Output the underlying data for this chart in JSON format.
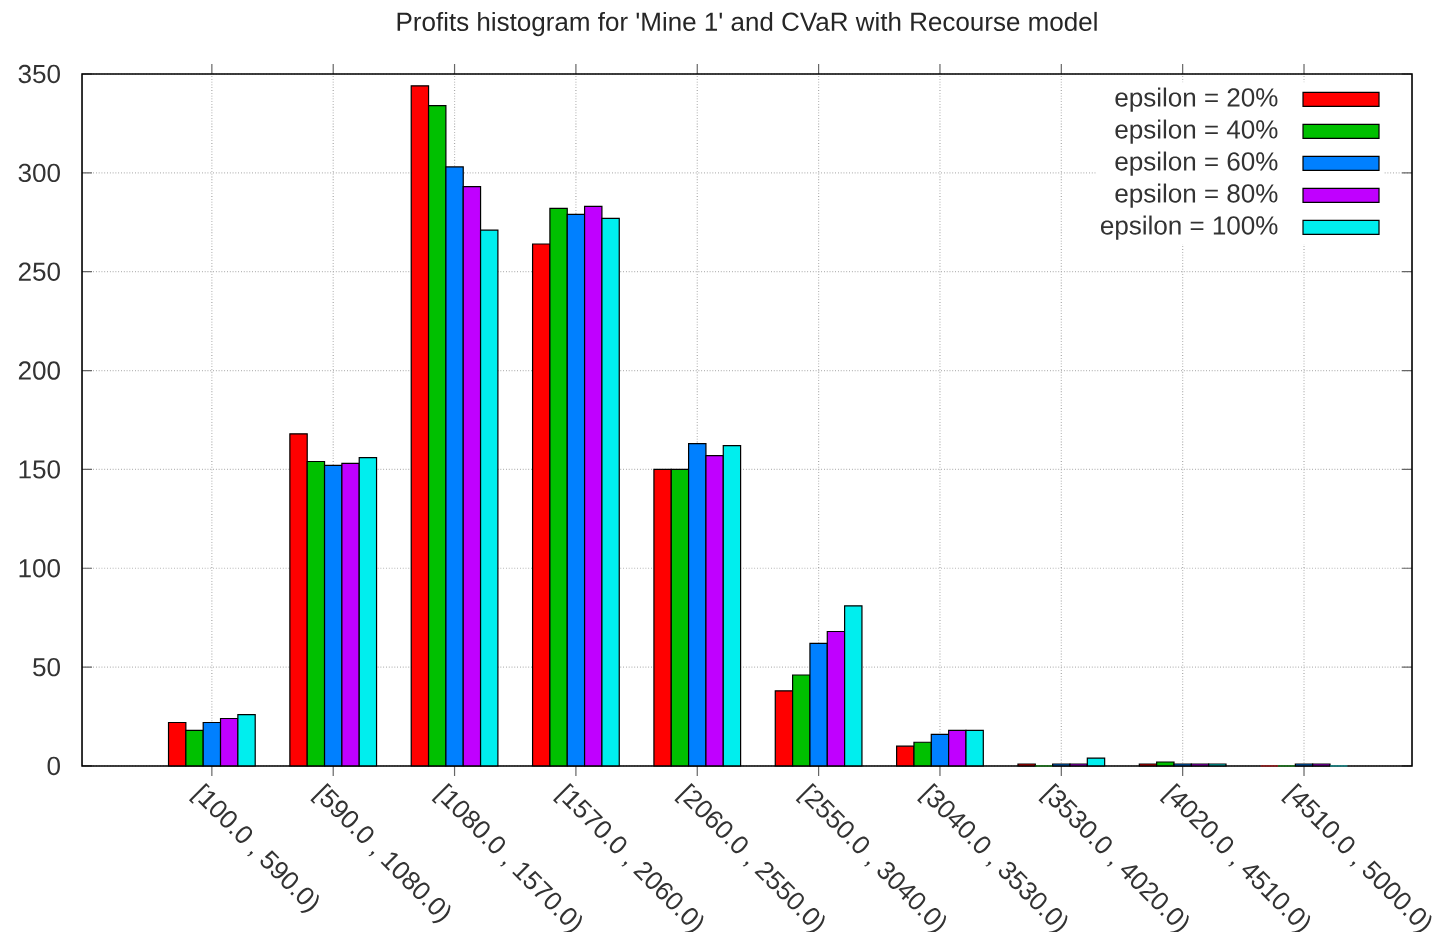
{
  "chart_data": {
    "type": "bar",
    "title": "Profits histogram for 'Mine 1' and CVaR with Recourse model",
    "categories": [
      "[100.0 , 590.0)",
      "[590.0 , 1080.0)",
      "[1080.0 , 1570.0)",
      "[1570.0 , 2060.0)",
      "[2060.0 , 2550.0)",
      "[2550.0 , 3040.0)",
      "[3040.0 , 3530.0)",
      "[3530.0 , 4020.0)",
      "[4020.0 , 4510.0)",
      "[4510.0 , 5000.0)"
    ],
    "series": [
      {
        "name": "epsilon = 20%",
        "color": "#ff0000",
        "values": [
          22,
          168,
          344,
          264,
          150,
          38,
          10,
          1,
          1,
          0
        ]
      },
      {
        "name": "epsilon = 40%",
        "color": "#00c000",
        "values": [
          18,
          154,
          334,
          282,
          150,
          46,
          12,
          0,
          2,
          0
        ]
      },
      {
        "name": "epsilon = 60%",
        "color": "#0080ff",
        "values": [
          22,
          152,
          303,
          279,
          163,
          62,
          16,
          1,
          1,
          1
        ]
      },
      {
        "name": "epsilon = 80%",
        "color": "#c000ff",
        "values": [
          24,
          153,
          293,
          283,
          157,
          68,
          18,
          1,
          1,
          1
        ]
      },
      {
        "name": "epsilon = 100%",
        "color": "#00eeee",
        "values": [
          26,
          156,
          271,
          277,
          162,
          81,
          18,
          4,
          1,
          0
        ]
      }
    ],
    "ylim": [
      0,
      350
    ],
    "yticks": [
      0,
      50,
      100,
      150,
      200,
      250,
      300,
      350
    ],
    "grid": true,
    "legend": "top right"
  }
}
